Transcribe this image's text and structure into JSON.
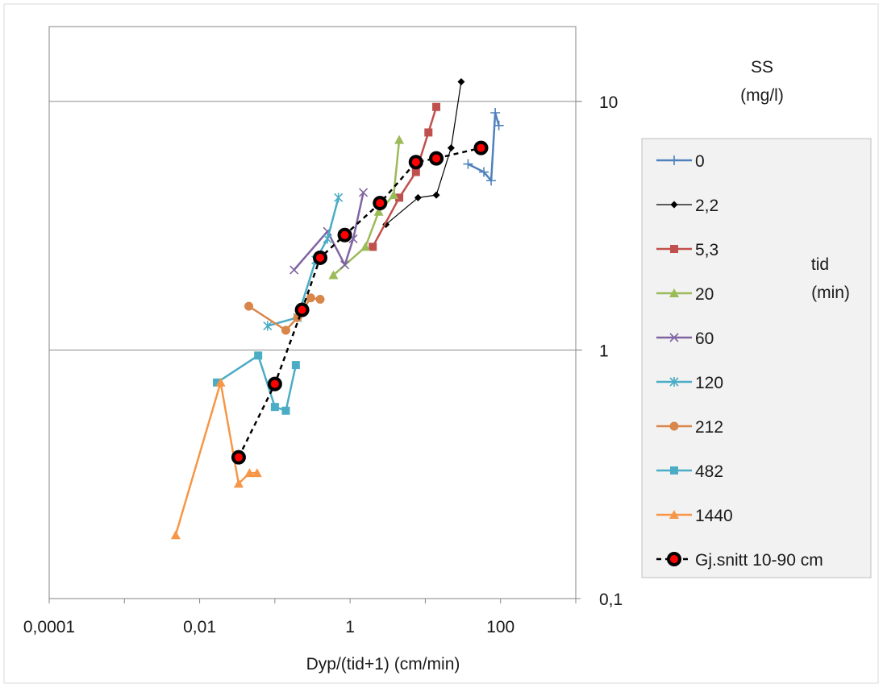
{
  "chart_data": {
    "type": "scatter",
    "x_scale": "log",
    "y_scale": "log",
    "xlabel": "Dyp/(tid+1) (cm/min)",
    "ylabel_line1": "SS",
    "ylabel_line2": "(mg/l)",
    "legend_title_line1": "tid",
    "legend_title_line2": "(min)",
    "xlim": [
      0.0001,
      1000
    ],
    "ylim": [
      0.1,
      20
    ],
    "x_ticks": [
      {
        "value": 0.0001,
        "label": "0,0001"
      },
      {
        "value": 0.01,
        "label": "0,01"
      },
      {
        "value": 1,
        "label": "1"
      },
      {
        "value": 100,
        "label": "100"
      }
    ],
    "y_ticks": [
      {
        "value": 10,
        "label": "10"
      },
      {
        "value": 1,
        "label": "1"
      },
      {
        "value": 0.1,
        "label": "0,1"
      }
    ],
    "grid": "horizontal major",
    "legend_position": "right",
    "series": [
      {
        "name": "0",
        "color": "#4f81bd",
        "marker": "plus",
        "line": "solid",
        "width": 2.5,
        "points": [
          [
            37,
            5.6
          ],
          [
            60,
            5.2
          ],
          [
            75,
            4.8
          ],
          [
            85,
            9.0
          ],
          [
            95,
            8.0
          ]
        ]
      },
      {
        "name": "2,2",
        "color": "#000000",
        "marker": "diamond",
        "line": "solid",
        "width": 1.2,
        "points": [
          [
            3,
            3.2
          ],
          [
            8,
            4.1
          ],
          [
            14,
            4.2
          ],
          [
            22,
            6.5
          ],
          [
            30,
            12.0
          ]
        ]
      },
      {
        "name": "5,3",
        "color": "#c0504d",
        "marker": "square",
        "line": "solid",
        "width": 2.5,
        "points": [
          [
            2,
            2.6
          ],
          [
            4.5,
            4.1
          ],
          [
            7.5,
            5.2
          ],
          [
            11,
            7.5
          ],
          [
            14,
            9.5
          ]
        ]
      },
      {
        "name": "20",
        "color": "#9bbb59",
        "marker": "triangle",
        "line": "solid",
        "width": 2.5,
        "points": [
          [
            0.6,
            2.0
          ],
          [
            1.6,
            2.6
          ],
          [
            2.4,
            3.6
          ],
          [
            3.8,
            4.2
          ],
          [
            4.5,
            7.0
          ]
        ]
      },
      {
        "name": "60",
        "color": "#8064a2",
        "marker": "x",
        "line": "solid",
        "width": 2.5,
        "points": [
          [
            0.18,
            2.1
          ],
          [
            0.5,
            3.0
          ],
          [
            0.85,
            2.2
          ],
          [
            1.1,
            2.8
          ],
          [
            1.5,
            4.3
          ]
        ]
      },
      {
        "name": "120",
        "color": "#4bacc6",
        "marker": "star",
        "line": "solid",
        "width": 2.5,
        "points": [
          [
            0.08,
            1.25
          ],
          [
            0.2,
            1.35
          ],
          [
            0.35,
            2.3
          ],
          [
            0.5,
            2.8
          ],
          [
            0.7,
            4.1
          ]
        ]
      },
      {
        "name": "212",
        "color": "#d9864b",
        "marker": "circle",
        "line": "solid",
        "width": 2.5,
        "points": [
          [
            0.045,
            1.5
          ],
          [
            0.14,
            1.2
          ],
          [
            0.2,
            1.35
          ],
          [
            0.3,
            1.62
          ],
          [
            0.4,
            1.6
          ]
        ]
      },
      {
        "name": "482",
        "color": "#4bacc6",
        "marker": "square",
        "line": "solid",
        "width": 2.5,
        "points": [
          [
            0.017,
            0.74
          ],
          [
            0.06,
            0.95
          ],
          [
            0.1,
            0.59
          ],
          [
            0.14,
            0.57
          ],
          [
            0.19,
            0.87
          ]
        ]
      },
      {
        "name": "1440",
        "color": "#f79646",
        "marker": "triangle",
        "line": "solid",
        "width": 2.5,
        "points": [
          [
            0.0048,
            0.18
          ],
          [
            0.019,
            0.74
          ],
          [
            0.033,
            0.29
          ],
          [
            0.046,
            0.32
          ],
          [
            0.058,
            0.32
          ]
        ]
      },
      {
        "name": "Gj.snitt 10-90 cm",
        "color": "#000000",
        "marker": "bigdot",
        "line": "dashed",
        "width": 2.5,
        "points": [
          [
            0.033,
            0.37
          ],
          [
            0.1,
            0.73
          ],
          [
            0.23,
            1.45
          ],
          [
            0.4,
            2.35
          ],
          [
            0.85,
            2.9
          ],
          [
            2.5,
            3.9
          ],
          [
            7.5,
            5.7
          ],
          [
            14,
            5.9
          ],
          [
            55,
            6.5
          ]
        ]
      }
    ]
  }
}
